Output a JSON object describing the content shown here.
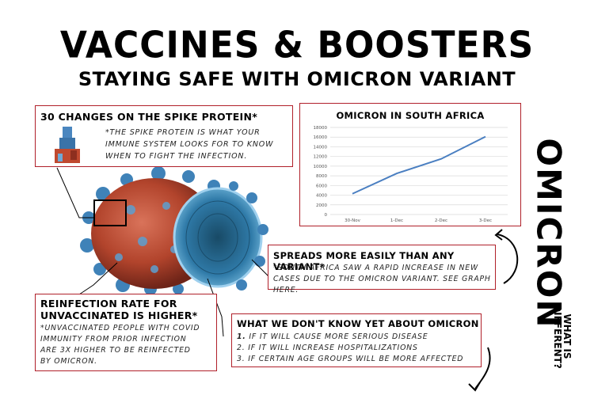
{
  "header": {
    "title": "VACCINES & BOOSTERS",
    "subtitle": "STAYING SAFE WITH OMICRON VARIANT"
  },
  "spike_box": {
    "heading": "30 CHANGES ON THE SPIKE PROTEIN*",
    "body": "*THE SPIKE PROTEIN IS WHAT YOUR IMMUNE SYSTEM LOOKS FOR TO KNOW WHEN TO FIGHT THE INFECTION."
  },
  "spread_box": {
    "heading": "SPREADS MORE EASILY THAN ANY VARIANT*",
    "body": "*SOUTH AFRICA SAW A RAPID INCREASE IN NEW CASES DUE TO THE OMICRON VARIANT. SEE GRAPH HERE."
  },
  "reinfection_box": {
    "heading_line1": "REINFECTION RATE FOR",
    "heading_line2": "UNVACCINATED IS HIGHER*",
    "body": "*UNVACCINATED PEOPLE WITH COVID IMMUNITY FROM PRIOR INFECTION ARE 3X HIGHER TO BE REINFECTED BY OMICRON."
  },
  "unknown_box": {
    "heading": "WHAT WE DON'T KNOW YET ABOUT OMICRON",
    "items": [
      {
        "num": "1.",
        "text": "IF IT WILL CAUSE MORE SERIOUS DISEASE"
      },
      {
        "num": "2.",
        "text": "IF IT WILL INCREASE HOSPITALIZATIONS"
      },
      {
        "num": "3.",
        "text": "IF CERTAIN AGE GROUPS WILL BE MORE AFFECTED"
      }
    ]
  },
  "side": {
    "main": "OMICRON",
    "sub_line1": "WHAT IS",
    "sub_line2": "DIFFERENT?"
  },
  "colors": {
    "accent_border": "#b0202a",
    "line": "#4a7fc1",
    "virus_red": "#b2442c",
    "virus_blue": "#3f82b8"
  },
  "chart_data": {
    "type": "line",
    "title": "OMICRON IN SOUTH AFRICA",
    "categories": [
      "30-Nov",
      "1-Dec",
      "2-Dec",
      "3-Dec"
    ],
    "values": [
      4300,
      8500,
      11500,
      16100
    ],
    "yticks": [
      "0",
      "2000",
      "4000",
      "6000",
      "8000",
      "10000",
      "12000",
      "14000",
      "16000",
      "18000"
    ],
    "ylim": [
      0,
      18000
    ],
    "grid": true,
    "legend": "none"
  }
}
